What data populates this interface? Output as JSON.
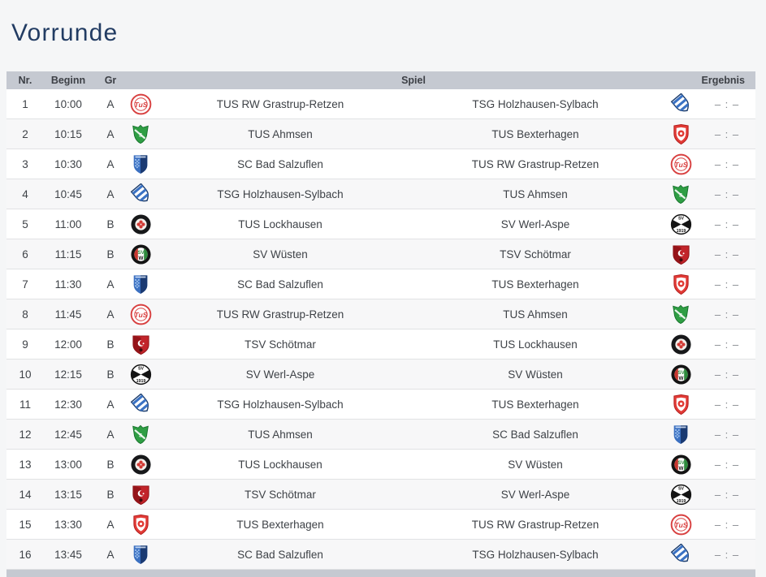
{
  "page": {
    "title": "Vorrunde"
  },
  "colors": {
    "title_text": "#223c63",
    "header_bg": "#c5c9d1",
    "header_text": "#3d4046",
    "row_bg": "#ffffff",
    "row_alt_bg": "#f7f7f8",
    "row_text": "#3e4247",
    "score_text": "#83878c",
    "page_bg": "#f5f6f7"
  },
  "table": {
    "headers": {
      "nr": "Nr.",
      "beginn": "Beginn",
      "gr": "Gr",
      "spiel": "Spiel",
      "ergebnis": "Ergebnis"
    },
    "teams": {
      "grastrup": {
        "name": "TUS RW Grastrup-Retzen",
        "logo": "tus-rw-grastrup-retzen-crest-icon",
        "primary_color": "#d84040"
      },
      "ahmsen": {
        "name": "TUS Ahmsen",
        "logo": "tus-ahmsen-crest-icon",
        "primary_color": "#2f9e44"
      },
      "salzuflen": {
        "name": "SC Bad Salzuflen",
        "logo": "sc-bad-salzuflen-crest-icon",
        "primary_color": "#3a6fc0"
      },
      "holzhausen": {
        "name": "TSG Holzhausen-Sylbach",
        "logo": "tsg-holzhausen-sylbach-crest-icon",
        "primary_color": "#3a72c4"
      },
      "lockhausen": {
        "name": "TUS Lockhausen",
        "logo": "tus-lockhausen-crest-icon",
        "primary_color": "#17181a"
      },
      "wuesten": {
        "name": "SV Wüsten",
        "logo": "sv-wuesten-crest-icon",
        "primary_color": "#141414"
      },
      "werlaspe": {
        "name": "SV Werl-Aspe",
        "logo": "sv-werl-aspe-crest-icon",
        "primary_color": "#141414"
      },
      "schoetmar": {
        "name": "TSV Schötmar",
        "logo": "tsv-schoetmar-crest-icon",
        "primary_color": "#c2242a"
      },
      "bexterhagen": {
        "name": "TUS Bexterhagen",
        "logo": "tus-bexterhagen-crest-icon",
        "primary_color": "#e23b36"
      }
    },
    "rows": [
      {
        "nr": "1",
        "time": "10:00",
        "group": "A",
        "home": "grastrup",
        "away": "holzhausen",
        "score": "– : –"
      },
      {
        "nr": "2",
        "time": "10:15",
        "group": "A",
        "home": "ahmsen",
        "away": "bexterhagen",
        "score": "– : –"
      },
      {
        "nr": "3",
        "time": "10:30",
        "group": "A",
        "home": "salzuflen",
        "away": "grastrup",
        "score": "– : –"
      },
      {
        "nr": "4",
        "time": "10:45",
        "group": "A",
        "home": "holzhausen",
        "away": "ahmsen",
        "score": "– : –"
      },
      {
        "nr": "5",
        "time": "11:00",
        "group": "B",
        "home": "lockhausen",
        "away": "werlaspe",
        "score": "– : –"
      },
      {
        "nr": "6",
        "time": "11:15",
        "group": "B",
        "home": "wuesten",
        "away": "schoetmar",
        "score": "– : –"
      },
      {
        "nr": "7",
        "time": "11:30",
        "group": "A",
        "home": "salzuflen",
        "away": "bexterhagen",
        "score": "– : –"
      },
      {
        "nr": "8",
        "time": "11:45",
        "group": "A",
        "home": "grastrup",
        "away": "ahmsen",
        "score": "– : –"
      },
      {
        "nr": "9",
        "time": "12:00",
        "group": "B",
        "home": "schoetmar",
        "away": "lockhausen",
        "score": "– : –"
      },
      {
        "nr": "10",
        "time": "12:15",
        "group": "B",
        "home": "werlaspe",
        "away": "wuesten",
        "score": "– : –"
      },
      {
        "nr": "11",
        "time": "12:30",
        "group": "A",
        "home": "holzhausen",
        "away": "bexterhagen",
        "score": "– : –"
      },
      {
        "nr": "12",
        "time": "12:45",
        "group": "A",
        "home": "ahmsen",
        "away": "salzuflen",
        "score": "– : –"
      },
      {
        "nr": "13",
        "time": "13:00",
        "group": "B",
        "home": "lockhausen",
        "away": "wuesten",
        "score": "– : –"
      },
      {
        "nr": "14",
        "time": "13:15",
        "group": "B",
        "home": "schoetmar",
        "away": "werlaspe",
        "score": "– : –"
      },
      {
        "nr": "15",
        "time": "13:30",
        "group": "A",
        "home": "bexterhagen",
        "away": "grastrup",
        "score": "– : –"
      },
      {
        "nr": "16",
        "time": "13:45",
        "group": "A",
        "home": "salzuflen",
        "away": "holzhausen",
        "score": "– : –"
      }
    ]
  }
}
